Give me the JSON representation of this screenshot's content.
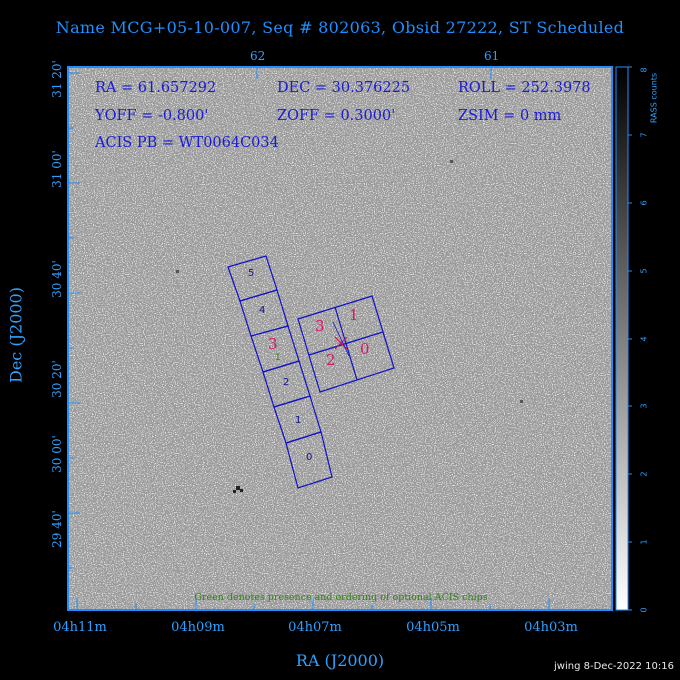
{
  "title": "Name MCG+05-10-007, Seq # 802063, Obsid 27222, ST Scheduled",
  "info": {
    "ra": "RA = 61.657292",
    "dec": "DEC = 30.376225",
    "roll": "ROLL = 252.3978",
    "yoff": "YOFF = -0.800'",
    "zoff": "ZOFF = 0.3000'",
    "zsim": "ZSIM = 0 mm",
    "acis": "ACIS PB = WT0064C034"
  },
  "green_note": "Green denotes presence and ordering of optional ACIS chips",
  "footer": "jwing  8-Dec-2022 10:16",
  "chart_data": {
    "type": "heatmap",
    "xlabel": "RA (J2000)",
    "ylabel": "Dec (J2000)",
    "x_ticks": [
      "04h11m",
      "04h09m",
      "04h07m",
      "04h05m",
      "04h03m"
    ],
    "top_ticks": [
      "62",
      "61"
    ],
    "y_ticks": [
      "31 20'",
      "31 00'",
      "30 40'",
      "30 20'",
      "30 00'",
      "29 40'"
    ],
    "colorbar": {
      "label": "RASS counts",
      "ticks": [
        "0",
        "1",
        "2",
        "3",
        "4",
        "5",
        "6",
        "7",
        "8"
      ],
      "range": [
        0,
        8
      ]
    },
    "chips": {
      "acis_s": [
        "0",
        "1",
        "2",
        "3",
        "4",
        "5"
      ],
      "acis_s_optional": [
        "1"
      ],
      "acis_i": [
        "0",
        "1",
        "2",
        "3"
      ]
    },
    "pointing": {
      "ra": 61.657292,
      "dec": 30.376225,
      "roll": 252.3978
    }
  },
  "colors": {
    "frame": "#1f8fff",
    "chip_outline": "#1010c8",
    "acis_i_labels": "#e0106a",
    "optional": "#2a8a00",
    "pointing_marker": "#d8104a"
  }
}
